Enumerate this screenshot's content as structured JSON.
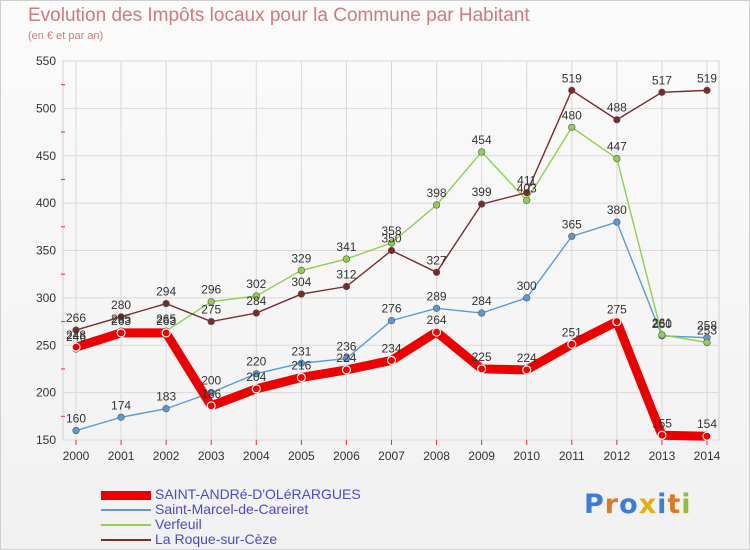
{
  "title": "Evolution des Impôts locaux pour la Commune par Habitant",
  "subtitle": "(en € et par an)",
  "logo_text": "Proxiti",
  "colors": {
    "title": "#d07a7a",
    "legend_text": "#4a4ad0",
    "grid": "#d9d9d9",
    "axis_tick": "#e03030"
  },
  "chart_data": {
    "type": "line",
    "title": "Evolution des Impôts locaux pour la Commune par Habitant",
    "subtitle": "(en € et par an)",
    "x": [
      2000,
      2001,
      2002,
      2003,
      2004,
      2005,
      2006,
      2007,
      2008,
      2009,
      2010,
      2011,
      2012,
      2013,
      2014
    ],
    "ylim": [
      150,
      550
    ],
    "yticks": [
      150,
      200,
      250,
      300,
      350,
      400,
      450,
      500,
      550
    ],
    "grid": true,
    "legend_position": "bottom-left",
    "series": [
      {
        "name": "SAINT-ANDRé-D'OLéRARGUES",
        "color": "#ee0000",
        "values": [
          248,
          263,
          263,
          186,
          204,
          216,
          224,
          234,
          264,
          225,
          224,
          251,
          275,
          155,
          154
        ]
      },
      {
        "name": "Saint-Marcel-de-Careiret",
        "color": "#5b9bd5",
        "values": [
          160,
          174,
          183,
          200,
          220,
          231,
          236,
          276,
          289,
          284,
          300,
          365,
          380,
          260,
          258
        ]
      },
      {
        "name": "Verfeuil",
        "color": "#8fd14f",
        "values": [
          246,
          265,
          265,
          296,
          302,
          329,
          341,
          358,
          398,
          454,
          403,
          480,
          447,
          261,
          253
        ]
      },
      {
        "name": "La Roque-sur-Cèze",
        "color": "#7b2a2a",
        "values": [
          266,
          280,
          294,
          275,
          284,
          304,
          312,
          350,
          327,
          399,
          411,
          519,
          488,
          517,
          519
        ]
      }
    ]
  }
}
